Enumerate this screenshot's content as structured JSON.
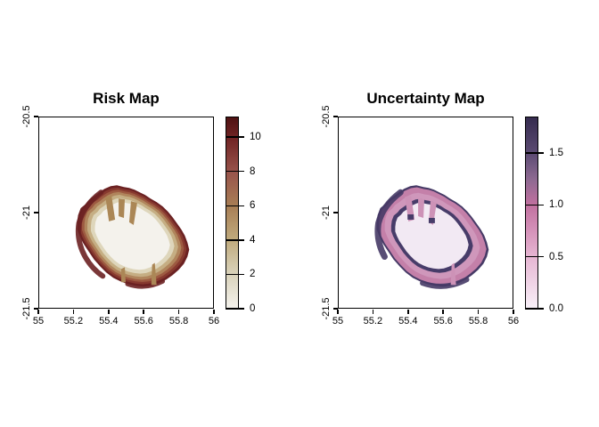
{
  "figure": {
    "background": "#ffffff"
  },
  "chart_data": [
    {
      "type": "heatmap",
      "title": "Risk Map",
      "xlabel": "",
      "ylabel": "",
      "xlim": [
        55,
        56
      ],
      "ylim": [
        -21.5,
        -20.5
      ],
      "x_ticks": [
        55,
        55.2,
        55.4,
        55.6,
        55.8,
        56
      ],
      "x_tick_labels": [
        "55",
        "55.2",
        "55.4",
        "55.6",
        "55.8",
        "56"
      ],
      "y_ticks": [
        -20.5,
        -21,
        -21.5
      ],
      "y_tick_labels": [
        "-20.5",
        "-21",
        "-21.5"
      ],
      "grid": false,
      "legend_position": "right",
      "colorbar": {
        "min": 0,
        "max": 11.2,
        "ticks": [
          0,
          2,
          4,
          6,
          8,
          10
        ],
        "tick_labels": [
          "0",
          "2",
          "4",
          "6",
          "8",
          "10"
        ],
        "stops": [
          {
            "value": 0,
            "color": "#f4f2ec"
          },
          {
            "value": 2,
            "color": "#d9d2ba"
          },
          {
            "value": 4,
            "color": "#c0ab7d"
          },
          {
            "value": 6,
            "color": "#a87e55"
          },
          {
            "value": 8,
            "color": "#98534b"
          },
          {
            "value": 10,
            "color": "#702424"
          },
          {
            "value": 11.2,
            "color": "#4e1213"
          }
        ]
      },
      "island_extent": {
        "lon": [
          55.21,
          55.86
        ],
        "lat": [
          -21.39,
          -20.86
        ]
      },
      "pattern": "island raster: highest risk (dark red) along the coastline ring, grading through brown and tan to near-zero (white) in the interior; tan valley fingers intrude from the north coast; sea cells are blank",
      "island_layers": [
        {
          "approx_value": 11,
          "color": "#6b2122"
        },
        {
          "approx_value": 9.5,
          "color": "#87392f"
        },
        {
          "approx_value": 8,
          "color": "#9d5a41"
        },
        {
          "approx_value": 6,
          "color": "#b0855c"
        },
        {
          "approx_value": 4,
          "color": "#c5ae83"
        },
        {
          "approx_value": 2,
          "color": "#ded6bb"
        },
        {
          "approx_value": 0.5,
          "color": "#f4f2ec"
        }
      ],
      "finger_color": "#ab8756"
    },
    {
      "type": "heatmap",
      "title": "Uncertainty Map",
      "xlabel": "",
      "ylabel": "",
      "xlim": [
        55,
        56
      ],
      "ylim": [
        -21.5,
        -20.5
      ],
      "x_ticks": [
        55,
        55.2,
        55.4,
        55.6,
        55.8,
        56
      ],
      "x_tick_labels": [
        "55",
        "55.2",
        "55.4",
        "55.6",
        "55.8",
        "56"
      ],
      "y_ticks": [
        -20.5,
        -21,
        -21.5
      ],
      "y_tick_labels": [
        "-20.5",
        "-21",
        "-21.5"
      ],
      "grid": false,
      "legend_position": "right",
      "colorbar": {
        "min": 0,
        "max": 1.85,
        "ticks": [
          0,
          0.5,
          1,
          1.5
        ],
        "tick_labels": [
          "0.0",
          "0.5",
          "1.0",
          "1.5"
        ],
        "stops": [
          {
            "value": 0,
            "color": "#f8f0f8"
          },
          {
            "value": 0.5,
            "color": "#e6b5d2"
          },
          {
            "value": 0.75,
            "color": "#d592b9"
          },
          {
            "value": 1.0,
            "color": "#c1709f"
          },
          {
            "value": 1.25,
            "color": "#8d6991"
          },
          {
            "value": 1.5,
            "color": "#5c4b73"
          },
          {
            "value": 1.85,
            "color": "#362c4f"
          }
        ]
      },
      "island_extent": {
        "lon": [
          55.21,
          55.86
        ],
        "lat": [
          -21.39,
          -20.86
        ]
      },
      "pattern": "island raster: dark purple patches at the outer coast edge, a medium-high pink band around the coast, a thin dark purple inner ring, and very low uncertainty (pale lavender) interior; sea cells are blank",
      "island_layers": [
        {
          "approx_value": 1.7,
          "color": "#463a66"
        },
        {
          "approx_value": 0.9,
          "color": "#c480a9"
        },
        {
          "approx_value": 0.8,
          "color": "#cf97bb"
        },
        {
          "approx_value": 1.6,
          "color": "#473c69"
        },
        {
          "approx_value": 0.05,
          "color": "#f2e9f3"
        }
      ],
      "finger_color": "#cd92b7"
    }
  ]
}
